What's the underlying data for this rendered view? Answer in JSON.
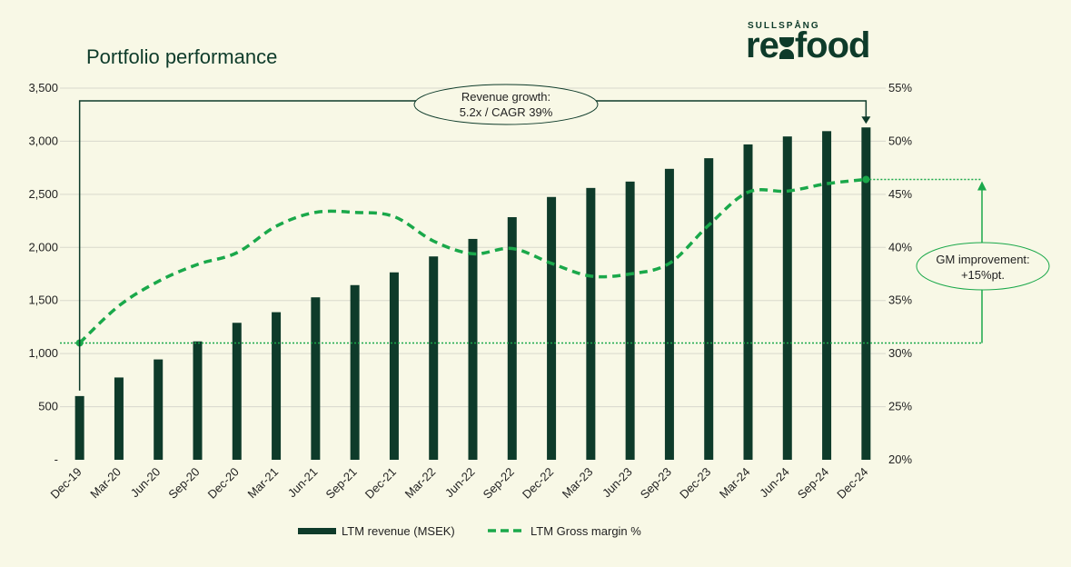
{
  "header": {
    "title": "Portfolio performance"
  },
  "brand": {
    "tagline": "SULLSPÅNG",
    "name": "rexfood",
    "name_pre": "re",
    "name_post": "food"
  },
  "colors": {
    "background": "#f8f8e6",
    "bar": "#0e3b2a",
    "line": "#1aa84a",
    "text": "#222222"
  },
  "chart_data": {
    "type": "bar",
    "categories": [
      "Dec-19",
      "Mar-20",
      "Jun-20",
      "Sep-20",
      "Dec-20",
      "Mar-21",
      "Jun-21",
      "Sep-21",
      "Dec-21",
      "Mar-22",
      "Jun-22",
      "Sep-22",
      "Dec-22",
      "Mar-23",
      "Jun-23",
      "Sep-23",
      "Dec-23",
      "Mar-24",
      "Jun-24",
      "Sep-24",
      "Dec-24"
    ],
    "series": [
      {
        "name": "LTM revenue (MSEK)",
        "type": "bar",
        "axis": "left",
        "values": [
          600,
          775,
          945,
          1115,
          1290,
          1390,
          1530,
          1645,
          1765,
          1915,
          2080,
          2285,
          2475,
          2560,
          2620,
          2740,
          2840,
          2970,
          3045,
          3095,
          3130
        ]
      },
      {
        "name": "LTM Gross margin %",
        "type": "line",
        "style": "dashed",
        "axis": "right",
        "values": [
          31.0,
          34.5,
          36.8,
          38.4,
          39.5,
          42.0,
          43.3,
          43.3,
          42.9,
          40.6,
          39.4,
          39.9,
          38.5,
          37.3,
          37.5,
          38.5,
          42.1,
          45.2,
          45.3,
          46.0,
          46.4
        ]
      }
    ],
    "y_left": {
      "min": 0,
      "max": 3500,
      "ticks": [
        "-",
        "500",
        "1,000",
        "1,500",
        "2,000",
        "2,500",
        "3,000",
        "3,500"
      ]
    },
    "y_right": {
      "min": 20,
      "max": 55,
      "ticks": [
        "20%",
        "25%",
        "30%",
        "35%",
        "40%",
        "45%",
        "50%",
        "55%"
      ]
    },
    "gridlines": true,
    "legend_position": "bottom-center",
    "annotations": {
      "revenue": {
        "line1": "Revenue growth:",
        "line2": "5.2x / CAGR 39%"
      },
      "margin": {
        "line1": "GM improvement:",
        "line2": "+15%pt."
      }
    }
  }
}
